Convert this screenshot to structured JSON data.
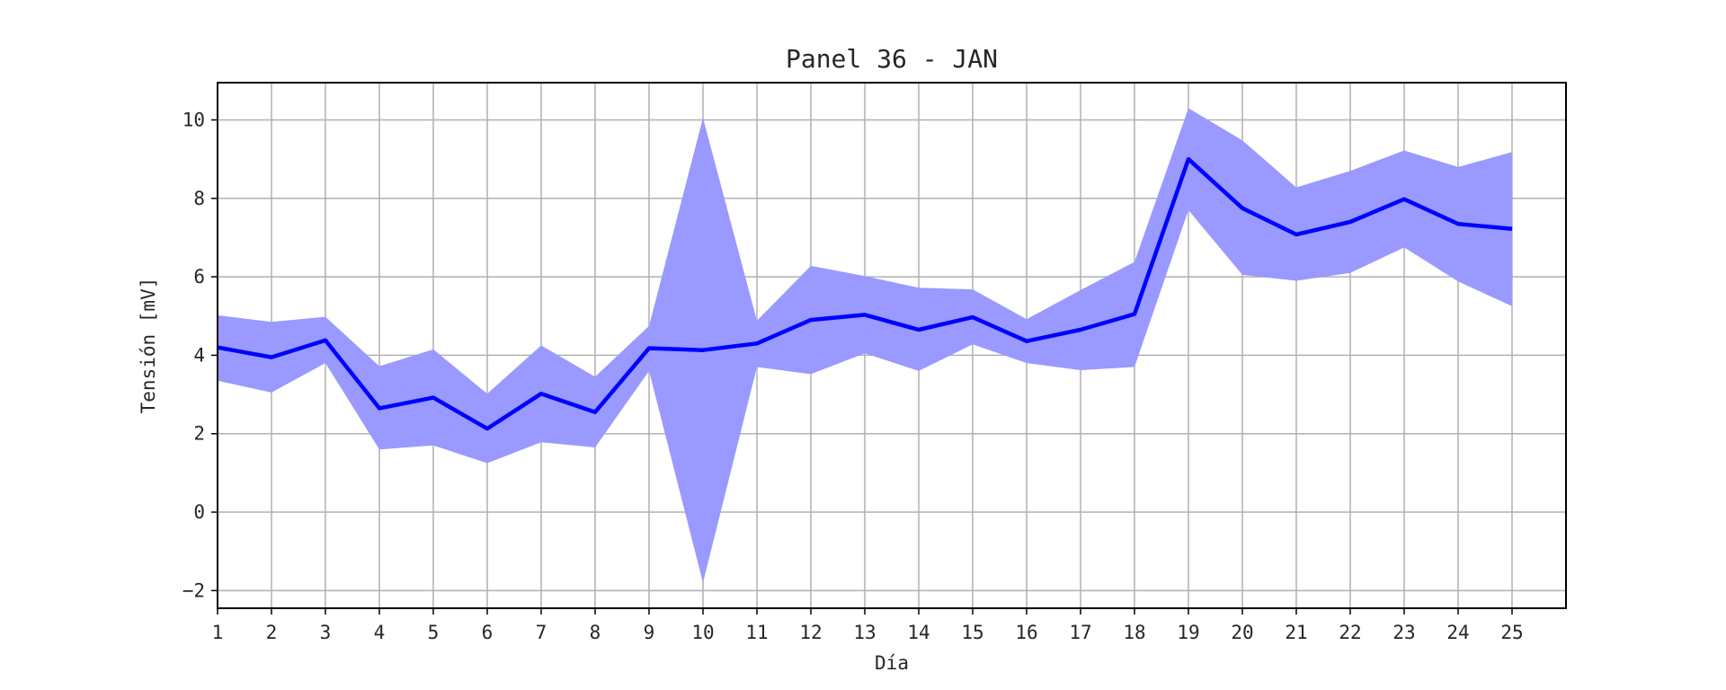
{
  "chart_data": {
    "type": "line",
    "title": "Panel 36 - JAN",
    "xlabel": "Día",
    "ylabel": "Tensión [mV]",
    "x": [
      1,
      2,
      3,
      4,
      5,
      6,
      7,
      8,
      9,
      10,
      11,
      12,
      13,
      14,
      15,
      16,
      17,
      18,
      19,
      20,
      21,
      22,
      23,
      24,
      25
    ],
    "xlim": [
      1,
      26
    ],
    "ylim": [
      -2.45,
      10.95
    ],
    "yticks": [
      -2,
      0,
      2,
      4,
      6,
      8,
      10
    ],
    "ytick_labels": [
      "−2",
      "0",
      "2",
      "4",
      "6",
      "8",
      "10"
    ],
    "grid": true,
    "series": [
      {
        "values": [
          4.2,
          3.95,
          4.38,
          2.65,
          2.92,
          2.13,
          3.02,
          2.55,
          4.18,
          4.13,
          4.3,
          4.9,
          5.03,
          4.65,
          4.97,
          4.36,
          4.65,
          5.05,
          9.0,
          7.75,
          7.08,
          7.4,
          7.98,
          7.35,
          7.22
        ],
        "band_lower": [
          3.35,
          3.05,
          3.8,
          1.6,
          1.7,
          1.25,
          1.78,
          1.65,
          3.6,
          -1.8,
          3.7,
          3.52,
          4.05,
          3.6,
          4.28,
          3.8,
          3.62,
          3.7,
          7.7,
          6.05,
          5.9,
          6.1,
          6.75,
          5.88,
          5.25
        ],
        "band_upper": [
          5.02,
          4.85,
          4.98,
          3.72,
          4.15,
          3.02,
          4.25,
          3.45,
          4.75,
          10.05,
          4.88,
          6.28,
          6.02,
          5.72,
          5.68,
          4.92,
          5.66,
          6.38,
          10.3,
          9.48,
          8.28,
          8.7,
          9.22,
          8.8,
          9.18
        ],
        "line_color": "#0000ff",
        "band_color": "#9999ff"
      }
    ]
  }
}
